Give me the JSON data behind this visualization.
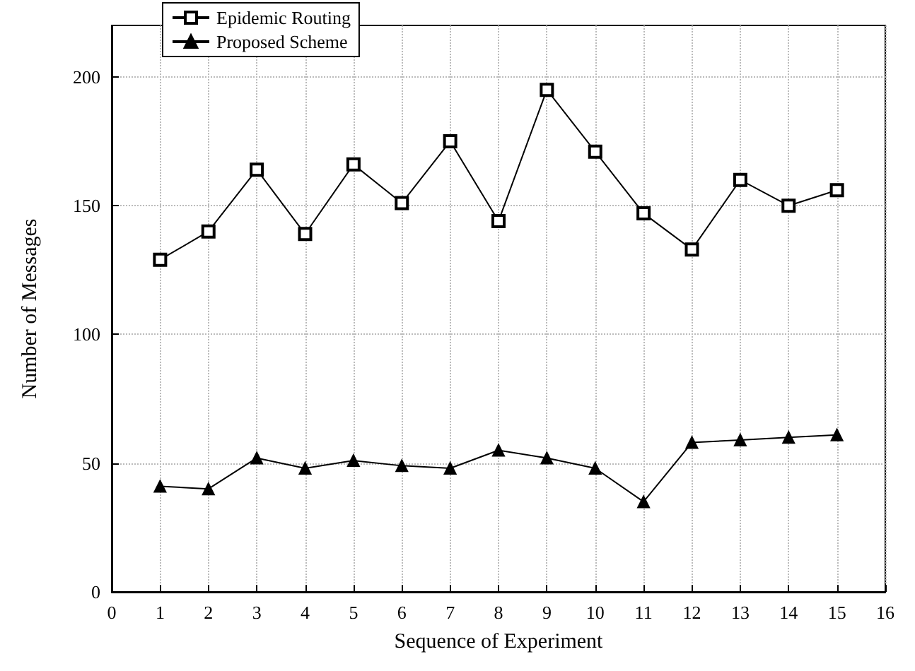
{
  "chart_data": {
    "type": "line",
    "xlabel": "Sequence of Experiment",
    "ylabel": "Number of Messages",
    "x": [
      1,
      2,
      3,
      4,
      5,
      6,
      7,
      8,
      9,
      10,
      11,
      12,
      13,
      14,
      15
    ],
    "series": [
      {
        "name": "Epidemic Routing",
        "color": "#000000",
        "marker": "square",
        "values": [
          129,
          140,
          164,
          139,
          166,
          151,
          175,
          144,
          195,
          171,
          147,
          133,
          160,
          150,
          156
        ]
      },
      {
        "name": "Proposed Scheme",
        "color": "#000000",
        "marker": "triangle",
        "values": [
          41,
          40,
          52,
          48,
          51,
          49,
          48,
          55,
          52,
          48,
          35,
          58,
          59,
          60,
          61
        ]
      }
    ],
    "xlim": [
      0,
      16
    ],
    "xticks": [
      0,
      1,
      2,
      3,
      4,
      5,
      6,
      7,
      8,
      9,
      10,
      11,
      12,
      13,
      14,
      15,
      16
    ],
    "ylim": [
      0,
      220
    ],
    "yticks": [
      0,
      50,
      100,
      150,
      200
    ],
    "grid": true,
    "legend": "top left",
    "line_style": "solid"
  }
}
